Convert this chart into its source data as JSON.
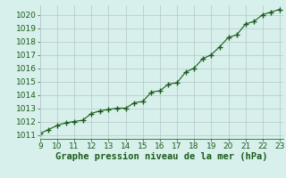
{
  "x": [
    9,
    9.5,
    10,
    10.5,
    11,
    11.5,
    12,
    12.5,
    13,
    13.5,
    14,
    14.5,
    15,
    15.5,
    16,
    16.5,
    17,
    17.5,
    18,
    18.5,
    19,
    19.5,
    20,
    20.5,
    21,
    21.5,
    22,
    22.5,
    23
  ],
  "y": [
    1011.1,
    1011.4,
    1011.7,
    1011.9,
    1012.0,
    1012.1,
    1012.6,
    1012.8,
    1012.9,
    1013.0,
    1013.0,
    1013.4,
    1013.5,
    1014.2,
    1014.3,
    1014.8,
    1014.9,
    1015.7,
    1016.0,
    1016.7,
    1017.0,
    1017.6,
    1018.3,
    1018.5,
    1019.3,
    1019.5,
    1020.0,
    1020.2,
    1020.4
  ],
  "line_color": "#1a5c1a",
  "marker": "+",
  "marker_size": 5,
  "bg_color": "#d8f0ec",
  "plot_bg_color": "#d8f0ec",
  "grid_color": "#b8cece",
  "xlim": [
    9,
    23.2
  ],
  "ylim": [
    1010.7,
    1020.7
  ],
  "xticks": [
    9,
    10,
    11,
    12,
    13,
    14,
    15,
    16,
    17,
    18,
    19,
    20,
    21,
    22,
    23
  ],
  "yticks": [
    1011,
    1012,
    1013,
    1014,
    1015,
    1016,
    1017,
    1018,
    1019,
    1020
  ],
  "xlabel": "Graphe pression niveau de la mer (hPa)",
  "xlabel_fontsize": 7.5,
  "tick_fontsize": 6.5,
  "tick_color": "#1a5c1a",
  "spine_color": "#5a8a5a",
  "spine_bottom_color": "#336633"
}
